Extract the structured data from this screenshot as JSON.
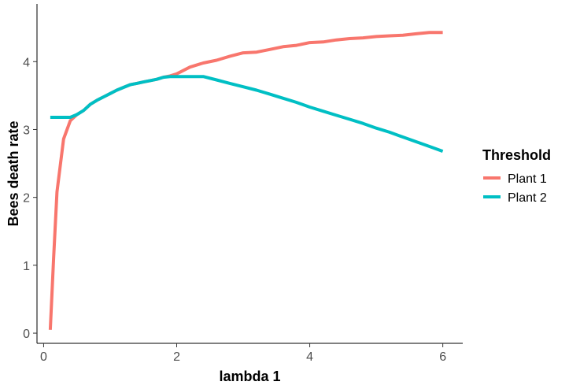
{
  "chart_data": {
    "type": "line",
    "xlabel": "lambda 1",
    "ylabel": "Bees death rate",
    "xlim": [
      -0.1,
      6.3
    ],
    "ylim": [
      -0.15,
      4.85
    ],
    "xticks": [
      0,
      2,
      4,
      6
    ],
    "yticks": [
      0,
      1,
      2,
      3,
      4
    ],
    "grid": false,
    "legend": {
      "title": "Threshold",
      "position": "right"
    },
    "series": [
      {
        "name": "Plant 1",
        "color": "#F8766D",
        "x": [
          0.1,
          0.15,
          0.2,
          0.3,
          0.4,
          0.5,
          0.6,
          0.7,
          0.8,
          0.9,
          1.0,
          1.1,
          1.2,
          1.3,
          1.4,
          1.5,
          1.6,
          1.7,
          1.8,
          1.9,
          2.0,
          2.2,
          2.4,
          2.6,
          2.8,
          3.0,
          3.2,
          3.4,
          3.6,
          3.8,
          4.0,
          4.2,
          4.4,
          4.6,
          4.8,
          5.0,
          5.2,
          5.4,
          5.6,
          5.8,
          6.0
        ],
        "y": [
          0.05,
          1.1,
          2.08,
          2.86,
          3.13,
          3.22,
          3.28,
          3.37,
          3.43,
          3.48,
          3.53,
          3.58,
          3.62,
          3.66,
          3.68,
          3.7,
          3.72,
          3.74,
          3.77,
          3.79,
          3.82,
          3.92,
          3.98,
          4.02,
          4.08,
          4.13,
          4.14,
          4.18,
          4.22,
          4.24,
          4.28,
          4.29,
          4.32,
          4.34,
          4.35,
          4.37,
          4.38,
          4.39,
          4.41,
          4.43,
          4.43
        ]
      },
      {
        "name": "Plant 2",
        "color": "#00BFC4",
        "x": [
          0.1,
          0.2,
          0.3,
          0.4,
          0.5,
          0.6,
          0.7,
          0.8,
          0.9,
          1.0,
          1.1,
          1.2,
          1.3,
          1.4,
          1.5,
          1.6,
          1.7,
          1.8,
          1.9,
          2.0,
          2.2,
          2.4,
          2.6,
          2.8,
          3.0,
          3.2,
          3.4,
          3.6,
          3.8,
          4.0,
          4.2,
          4.4,
          4.6,
          4.8,
          5.0,
          5.2,
          5.4,
          5.6,
          5.8,
          6.0
        ],
        "y": [
          3.18,
          3.18,
          3.18,
          3.18,
          3.22,
          3.28,
          3.37,
          3.43,
          3.48,
          3.53,
          3.58,
          3.62,
          3.66,
          3.68,
          3.7,
          3.72,
          3.74,
          3.77,
          3.78,
          3.78,
          3.78,
          3.78,
          3.73,
          3.68,
          3.63,
          3.58,
          3.52,
          3.46,
          3.4,
          3.33,
          3.27,
          3.21,
          3.15,
          3.09,
          3.02,
          2.96,
          2.89,
          2.82,
          2.75,
          2.68
        ]
      }
    ]
  }
}
